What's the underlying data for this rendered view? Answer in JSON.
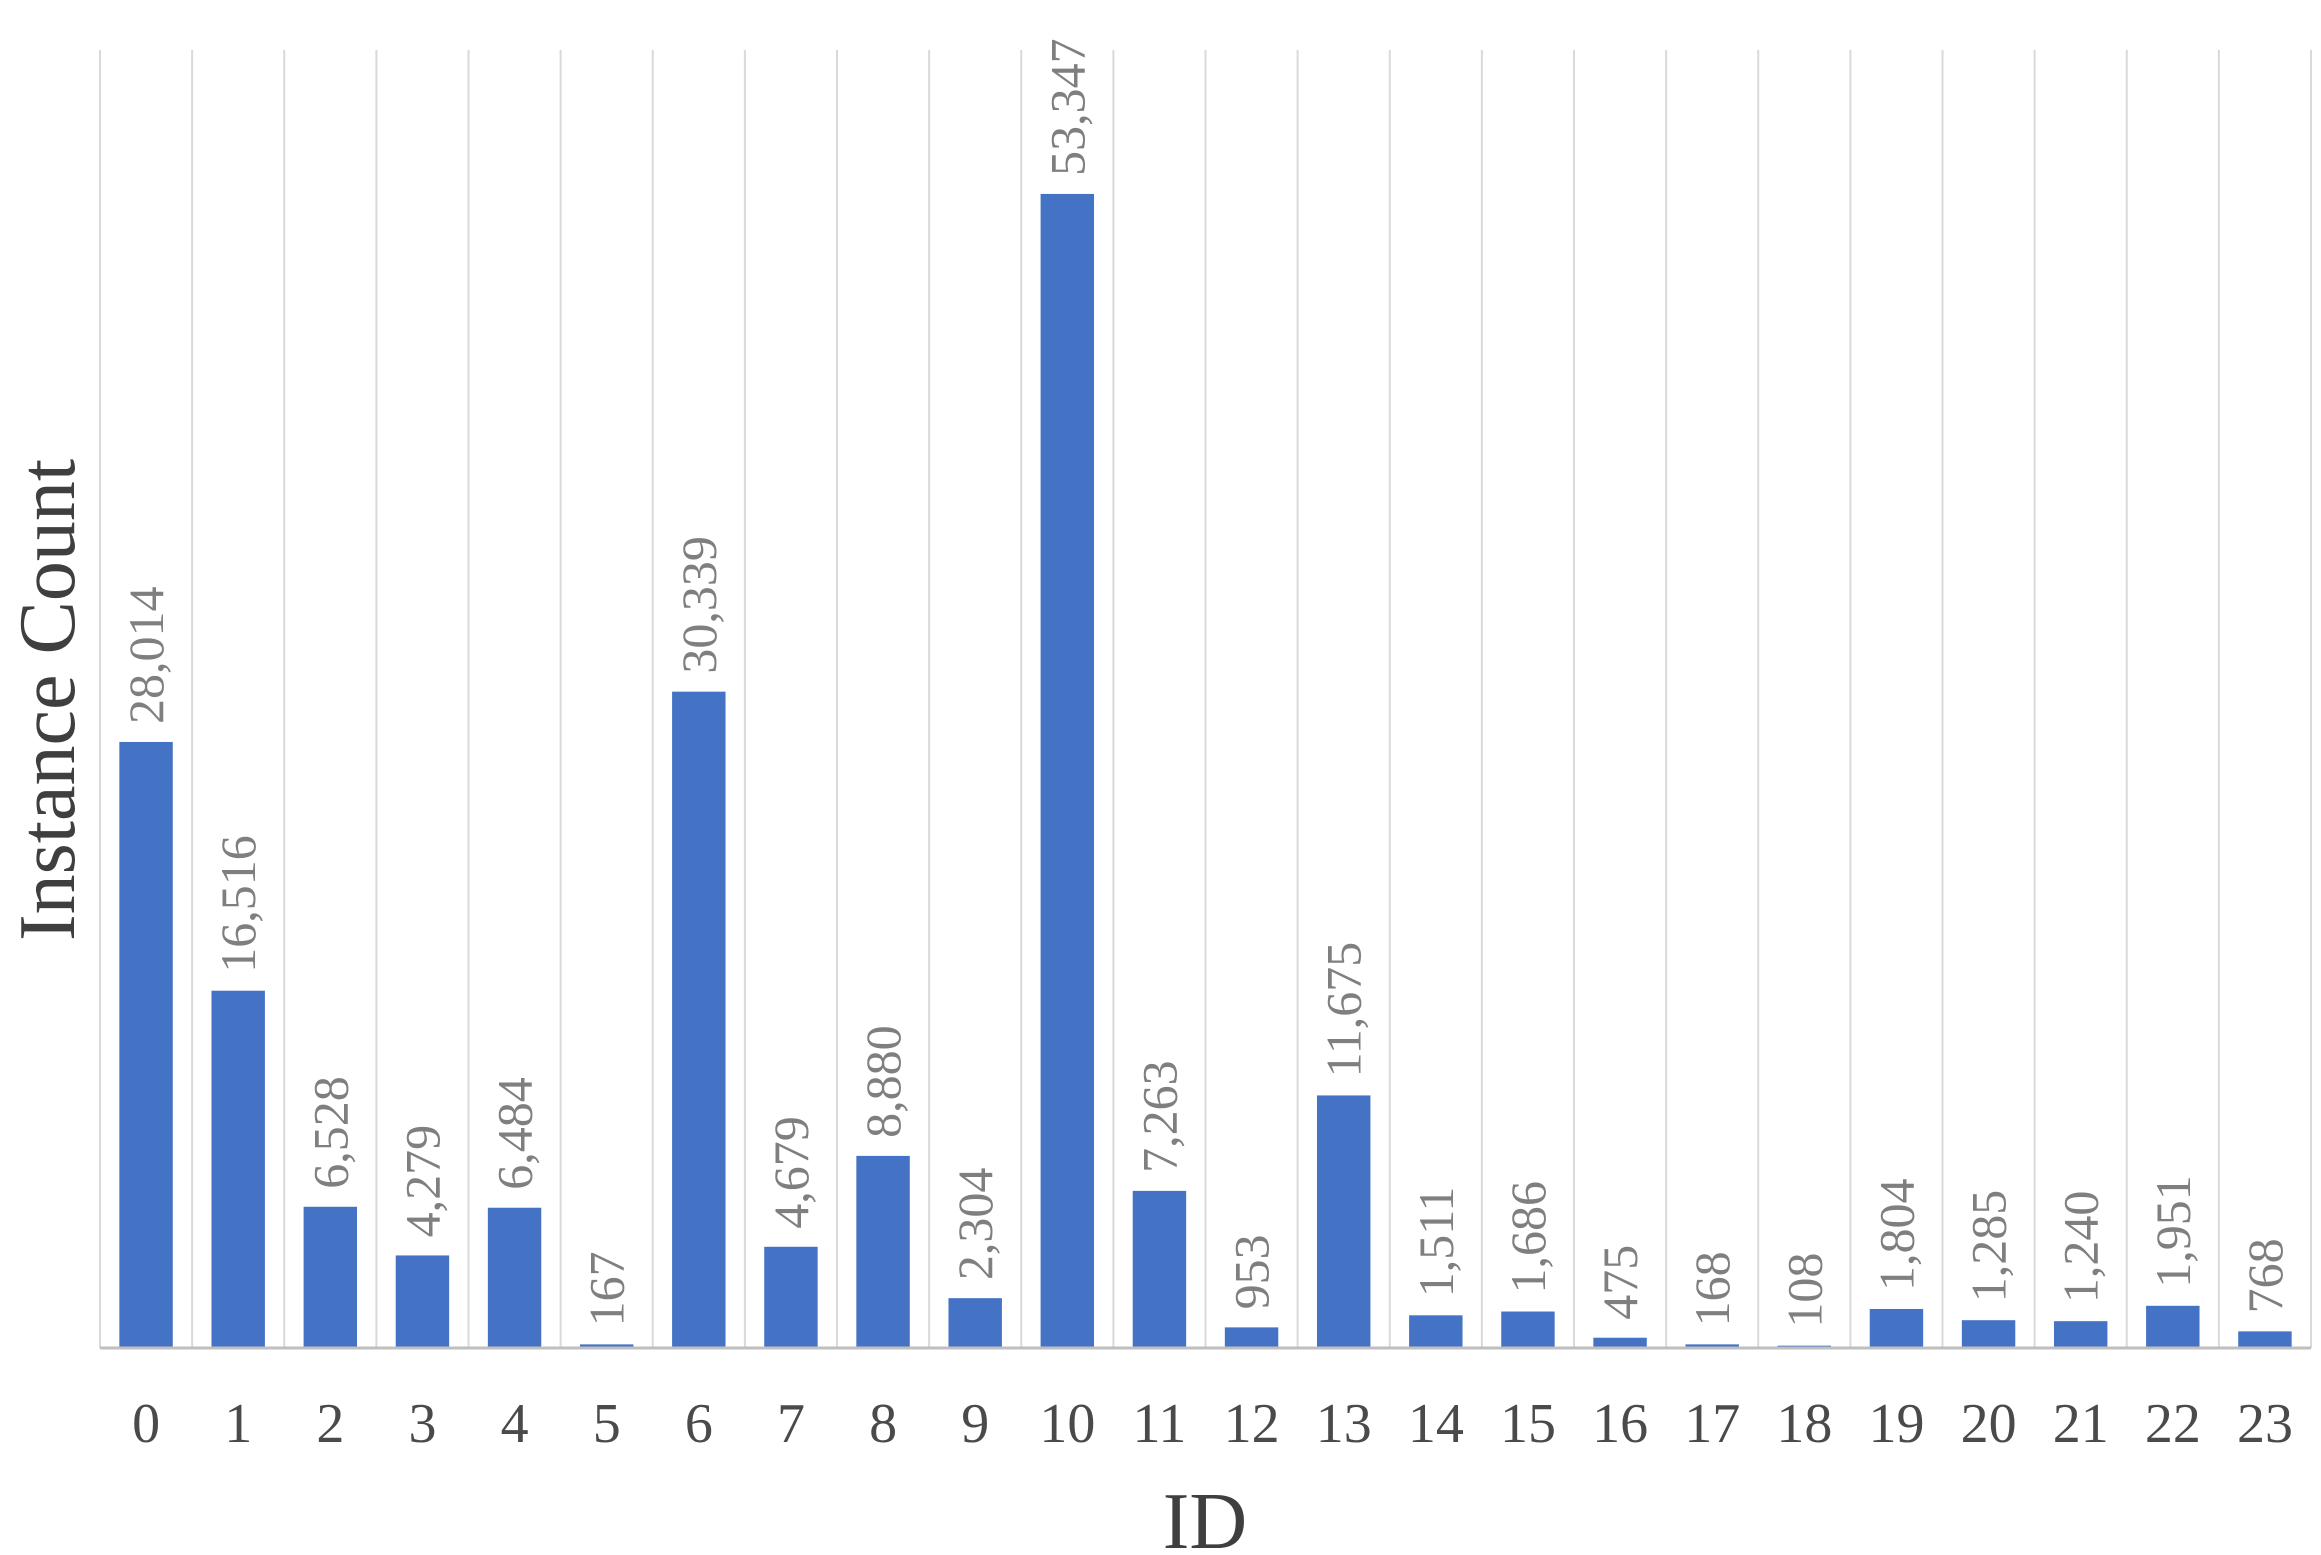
{
  "chart_data": {
    "type": "bar",
    "title": "",
    "xlabel": "ID",
    "ylabel": "Instance Count",
    "categories": [
      "0",
      "1",
      "2",
      "3",
      "4",
      "5",
      "6",
      "7",
      "8",
      "9",
      "10",
      "11",
      "12",
      "13",
      "14",
      "15",
      "16",
      "17",
      "18",
      "19",
      "20",
      "21",
      "22",
      "23"
    ],
    "values": [
      28014,
      16516,
      6528,
      4279,
      6484,
      167,
      30339,
      4679,
      8880,
      2304,
      53347,
      7263,
      953,
      11675,
      1511,
      1686,
      475,
      168,
      108,
      1804,
      1285,
      1240,
      1951,
      768
    ],
    "data_labels": [
      "28,014",
      "16,516",
      "6,528",
      "4,279",
      "6,484",
      "167",
      "30,339",
      "4,679",
      "8,880",
      "2,304",
      "53,347",
      "7,263",
      "953",
      "11,675",
      "1,511",
      "1,686",
      "475",
      "168",
      "108",
      "1,804",
      "1,285",
      "1,240",
      "1,951",
      "768"
    ],
    "ylim": [
      0,
      60000
    ],
    "grid": "vertical",
    "legend": "none",
    "bar_color": "#4472C4",
    "grid_color": "#d9d9d9",
    "axis_color": "#bfbfbf"
  }
}
